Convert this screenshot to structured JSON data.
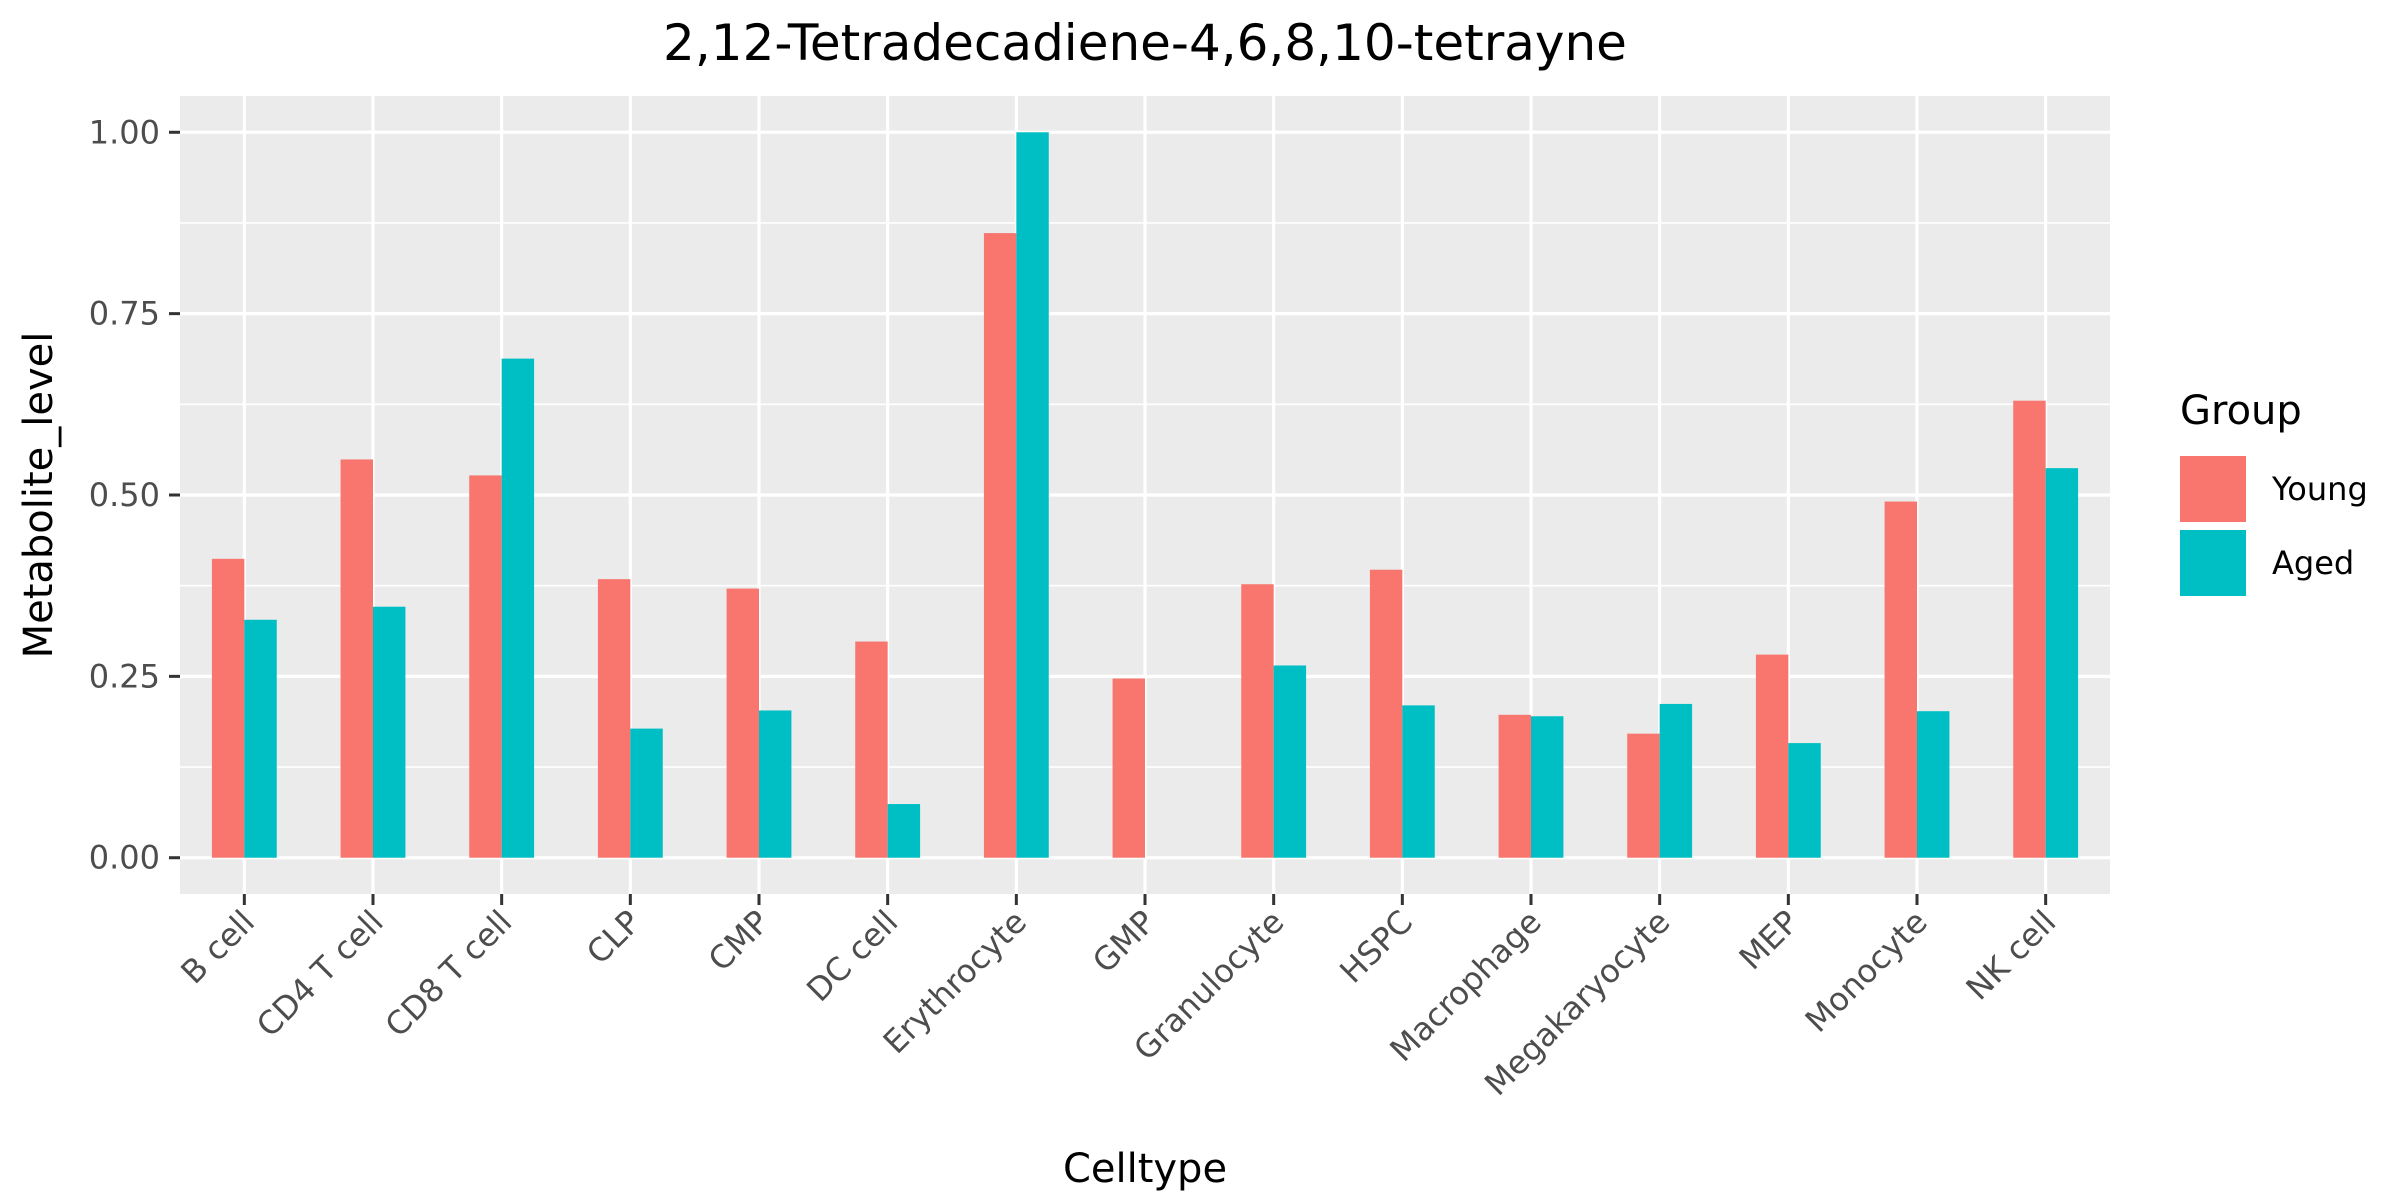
{
  "chart_data": {
    "type": "bar",
    "title": "2,12-Tetradecadiene-4,6,8,10-tetrayne",
    "xlabel": "Celltype",
    "ylabel": "Metabolite_level",
    "categories": [
      "B cell",
      "CD4 T cell",
      "CD8 T cell",
      "CLP",
      "CMP",
      "DC cell",
      "Erythrocyte",
      "GMP",
      "Granulocyte",
      "HSPC",
      "Macrophage",
      "Megakaryocyte",
      "MEP",
      "Monocyte",
      "NK cell"
    ],
    "series": [
      {
        "name": "Young",
        "color": "#F8766D",
        "values": [
          0.412,
          0.549,
          0.527,
          0.384,
          0.371,
          0.298,
          0.861,
          0.247,
          0.377,
          0.397,
          0.197,
          0.171,
          0.28,
          0.491,
          0.63
        ]
      },
      {
        "name": "Aged",
        "color": "#00BFC4",
        "values": [
          0.328,
          0.346,
          0.688,
          0.178,
          0.203,
          0.074,
          1.0,
          0.0,
          0.265,
          0.21,
          0.195,
          0.212,
          0.158,
          0.202,
          0.537
        ]
      }
    ],
    "ylim": [
      -0.05,
      1.05
    ],
    "yticks": [
      0.0,
      0.25,
      0.5,
      0.75,
      1.0
    ],
    "ytick_labels": [
      "0.00",
      "0.25",
      "0.50",
      "0.75",
      "1.00"
    ],
    "grid": true,
    "legend": {
      "title": "Group",
      "position": "right"
    },
    "panel_background": "#EBEBEB",
    "grid_color": "#FFFFFF"
  }
}
